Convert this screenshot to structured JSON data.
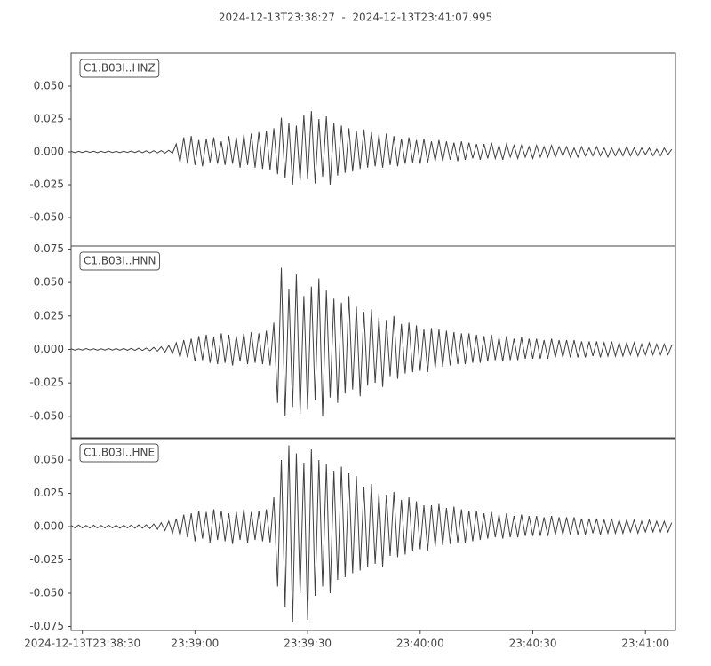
{
  "chart_data": {
    "type": "line",
    "title": "2024-12-13T23:38:27  -  2024-12-13T23:41:07.995",
    "x": [
      0,
      1,
      2,
      3,
      4,
      5,
      6,
      7,
      8,
      9,
      10,
      11,
      12,
      13,
      14,
      15,
      16,
      17,
      18,
      19,
      20,
      21,
      22,
      23,
      24,
      25,
      26,
      27,
      28,
      29,
      30,
      31,
      32,
      33,
      34,
      35,
      36,
      37,
      38,
      39,
      40,
      41,
      42,
      43,
      44,
      45,
      46,
      47,
      48,
      49,
      50,
      51,
      52,
      53,
      54,
      55,
      56,
      57,
      58,
      59,
      60,
      61,
      62,
      63,
      64,
      65,
      66,
      67,
      68,
      69,
      70,
      71,
      72,
      73,
      74,
      75,
      76,
      77,
      78,
      79,
      80,
      81,
      82,
      83,
      84,
      85,
      86,
      87,
      88,
      89,
      90,
      91,
      92,
      93,
      94,
      95,
      96,
      97,
      98,
      99,
      100,
      101,
      102,
      103,
      104,
      105,
      106,
      107,
      108,
      109,
      110,
      111,
      112,
      113,
      114,
      115,
      116,
      117,
      118,
      119,
      120,
      121,
      122,
      123,
      124,
      125,
      126,
      127,
      128,
      129,
      130,
      131,
      132,
      133,
      134,
      135,
      136,
      137,
      138,
      139,
      140,
      141,
      142,
      143,
      144,
      145,
      146,
      147,
      148,
      149,
      150,
      151,
      152,
      153,
      154,
      155,
      156,
      157,
      158,
      159,
      160
    ],
    "xlim": [
      0,
      160.995
    ],
    "xticks": [
      {
        "value": 3,
        "label": "2024-12-13T23:38:30"
      },
      {
        "value": 33,
        "label": "23:39:00"
      },
      {
        "value": 63,
        "label": "23:39:30"
      },
      {
        "value": 93,
        "label": "23:40:00"
      },
      {
        "value": 123,
        "label": "23:40:30"
      },
      {
        "value": 153,
        "label": "23:41:00"
      }
    ],
    "color": "#404040",
    "panels": [
      {
        "label": "C1.B03I..HNZ",
        "ylim": [
          -0.0716,
          0.075
        ],
        "yticks": [
          {
            "value": -0.05,
            "label": "-0.050"
          },
          {
            "value": -0.025,
            "label": "-0.025"
          },
          {
            "value": 0,
            "label": "0.000"
          },
          {
            "value": 0.025,
            "label": "0.025"
          },
          {
            "value": 0.05,
            "label": "0.050"
          }
        ],
        "values": [
          0.0005,
          -0.0006,
          0.0004,
          -0.0005,
          0.0006,
          -0.0004,
          0.0005,
          -0.0006,
          0.0004,
          -0.0005,
          0.0006,
          -0.0005,
          0.0004,
          -0.0006,
          0.0005,
          -0.0004,
          0.0006,
          -0.0005,
          0.0007,
          -0.0006,
          0.0008,
          -0.0007,
          0.0009,
          -0.0008,
          0.001,
          -0.0009,
          0.0012,
          -0.001,
          0.006,
          -0.008,
          0.011,
          -0.009,
          0.012,
          -0.01,
          0.009,
          -0.011,
          0.01,
          -0.008,
          0.011,
          -0.009,
          0.008,
          -0.01,
          0.012,
          -0.009,
          0.011,
          -0.012,
          0.013,
          -0.01,
          0.014,
          -0.012,
          0.015,
          -0.013,
          0.016,
          -0.014,
          0.018,
          -0.017,
          0.026,
          -0.02,
          0.022,
          -0.025,
          0.02,
          -0.022,
          0.028,
          -0.021,
          0.031,
          -0.024,
          0.025,
          -0.019,
          0.027,
          -0.025,
          0.022,
          -0.018,
          0.02,
          -0.016,
          0.018,
          -0.015,
          0.016,
          -0.013,
          0.017,
          -0.012,
          0.015,
          -0.011,
          0.013,
          -0.012,
          0.014,
          -0.01,
          0.012,
          -0.011,
          0.01,
          -0.009,
          0.011,
          -0.008,
          0.009,
          -0.009,
          0.01,
          -0.008,
          0.008,
          -0.007,
          0.009,
          -0.007,
          0.008,
          -0.006,
          0.007,
          -0.007,
          0.008,
          -0.006,
          0.007,
          -0.005,
          0.006,
          -0.006,
          0.006,
          -0.005,
          0.007,
          -0.005,
          0.005,
          -0.006,
          0.006,
          -0.004,
          0.005,
          -0.005,
          0.005,
          -0.004,
          0.004,
          -0.005,
          0.005,
          -0.004,
          0.004,
          -0.004,
          0.005,
          -0.004,
          0.004,
          -0.003,
          0.004,
          -0.004,
          0.003,
          -0.004,
          0.004,
          -0.003,
          0.003,
          -0.003,
          0.004,
          -0.003,
          0.003,
          -0.004,
          0.003,
          -0.003,
          0.003,
          -0.003,
          0.004,
          -0.003,
          0.003,
          -0.003,
          0.003,
          -0.002,
          0.003,
          -0.003,
          0.002,
          -0.003,
          0.003,
          -0.002,
          0.002
        ]
      },
      {
        "label": "C1.B03I..HNN",
        "ylim": [
          -0.0667,
          0.0773
        ],
        "yticks": [
          {
            "value": -0.05,
            "label": "-0.050"
          },
          {
            "value": -0.025,
            "label": "-0.025"
          },
          {
            "value": 0,
            "label": "0.000"
          },
          {
            "value": 0.025,
            "label": "0.025"
          },
          {
            "value": 0.05,
            "label": "0.050"
          },
          {
            "value": 0.075,
            "label": "0.075"
          }
        ],
        "values": [
          0.0005,
          -0.0006,
          0.0004,
          -0.0005,
          0.0006,
          -0.0004,
          0.0005,
          -0.0006,
          0.0005,
          -0.0005,
          0.0006,
          -0.0005,
          0.0006,
          -0.0006,
          0.0007,
          -0.0006,
          0.0008,
          -0.0007,
          0.0009,
          -0.0008,
          0.001,
          -0.001,
          0.0015,
          -0.0013,
          0.002,
          -0.002,
          0.003,
          -0.003,
          0.005,
          -0.006,
          0.007,
          -0.006,
          0.008,
          -0.009,
          0.01,
          -0.008,
          0.011,
          -0.01,
          0.009,
          -0.011,
          0.012,
          -0.01,
          0.011,
          -0.012,
          0.01,
          -0.009,
          0.012,
          -0.011,
          0.013,
          -0.01,
          0.012,
          -0.011,
          0.014,
          -0.012,
          0.02,
          -0.04,
          0.061,
          -0.05,
          0.045,
          -0.043,
          0.056,
          -0.048,
          0.04,
          -0.045,
          0.047,
          -0.038,
          0.053,
          -0.05,
          0.044,
          -0.036,
          0.038,
          -0.04,
          0.035,
          -0.033,
          0.04,
          -0.03,
          0.032,
          -0.035,
          0.028,
          -0.027,
          0.03,
          -0.025,
          0.024,
          -0.028,
          0.022,
          -0.02,
          0.025,
          -0.022,
          0.019,
          -0.018,
          0.02,
          -0.017,
          0.018,
          -0.016,
          0.015,
          -0.017,
          0.016,
          -0.014,
          0.015,
          -0.013,
          0.014,
          -0.012,
          0.013,
          -0.011,
          0.012,
          -0.011,
          0.012,
          -0.01,
          0.011,
          -0.01,
          0.01,
          -0.009,
          0.011,
          -0.008,
          0.009,
          -0.009,
          0.01,
          -0.008,
          0.008,
          -0.008,
          0.009,
          -0.007,
          0.008,
          -0.007,
          0.008,
          -0.007,
          0.007,
          -0.007,
          0.008,
          -0.006,
          0.007,
          -0.006,
          0.007,
          -0.006,
          0.007,
          -0.006,
          0.006,
          -0.006,
          0.006,
          -0.005,
          0.006,
          -0.006,
          0.005,
          -0.005,
          0.006,
          -0.005,
          0.005,
          -0.005,
          0.005,
          -0.004,
          0.005,
          -0.005,
          0.004,
          -0.004,
          0.005,
          -0.004,
          0.004,
          -0.004,
          0.004,
          -0.004,
          0.003
        ]
      },
      {
        "label": "C1.B03I..HNE",
        "ylim": [
          -0.078,
          0.0667
        ],
        "yticks": [
          {
            "value": -0.075,
            "label": "-0.075"
          },
          {
            "value": -0.05,
            "label": "-0.050"
          },
          {
            "value": -0.025,
            "label": "-0.025"
          },
          {
            "value": 0,
            "label": "0.000"
          },
          {
            "value": 0.025,
            "label": "0.025"
          },
          {
            "value": 0.05,
            "label": "0.050"
          }
        ],
        "values": [
          0.001,
          -0.001,
          0.0012,
          -0.001,
          0.0009,
          -0.0011,
          0.001,
          -0.001,
          0.0009,
          -0.001,
          0.0011,
          -0.001,
          0.001,
          -0.0012,
          0.001,
          -0.001,
          0.0011,
          -0.0012,
          0.0013,
          -0.0012,
          0.0014,
          -0.0015,
          0.002,
          -0.002,
          0.003,
          -0.003,
          0.004,
          -0.005,
          0.006,
          -0.007,
          0.009,
          -0.008,
          0.01,
          -0.011,
          0.012,
          -0.009,
          0.011,
          -0.012,
          0.013,
          -0.01,
          0.012,
          -0.011,
          0.01,
          -0.013,
          0.011,
          -0.01,
          0.013,
          -0.012,
          0.011,
          -0.01,
          0.012,
          -0.011,
          0.013,
          -0.012,
          0.022,
          -0.045,
          0.05,
          -0.06,
          0.061,
          -0.072,
          0.055,
          -0.05,
          0.048,
          -0.07,
          0.058,
          -0.052,
          0.05,
          -0.045,
          0.047,
          -0.05,
          0.042,
          -0.04,
          0.045,
          -0.038,
          0.04,
          -0.035,
          0.038,
          -0.033,
          0.03,
          -0.03,
          0.032,
          -0.028,
          0.025,
          -0.03,
          0.024,
          -0.022,
          0.026,
          -0.023,
          0.02,
          -0.021,
          0.022,
          -0.018,
          0.019,
          -0.017,
          0.016,
          -0.018,
          0.016,
          -0.015,
          0.017,
          -0.014,
          0.014,
          -0.013,
          0.015,
          -0.012,
          0.013,
          -0.012,
          0.012,
          -0.011,
          0.012,
          -0.01,
          0.01,
          -0.009,
          0.011,
          -0.008,
          0.009,
          -0.009,
          0.01,
          -0.008,
          0.008,
          -0.008,
          0.009,
          -0.007,
          0.008,
          -0.007,
          0.008,
          -0.007,
          0.007,
          -0.007,
          0.008,
          -0.006,
          0.007,
          -0.006,
          0.007,
          -0.006,
          0.007,
          -0.006,
          0.006,
          -0.006,
          0.006,
          -0.005,
          0.006,
          -0.006,
          0.005,
          -0.005,
          0.006,
          -0.005,
          0.005,
          -0.005,
          0.005,
          -0.004,
          0.005,
          -0.005,
          0.004,
          -0.004,
          0.005,
          -0.004,
          0.004,
          -0.004,
          0.004,
          -0.004,
          0.003
        ]
      }
    ]
  }
}
